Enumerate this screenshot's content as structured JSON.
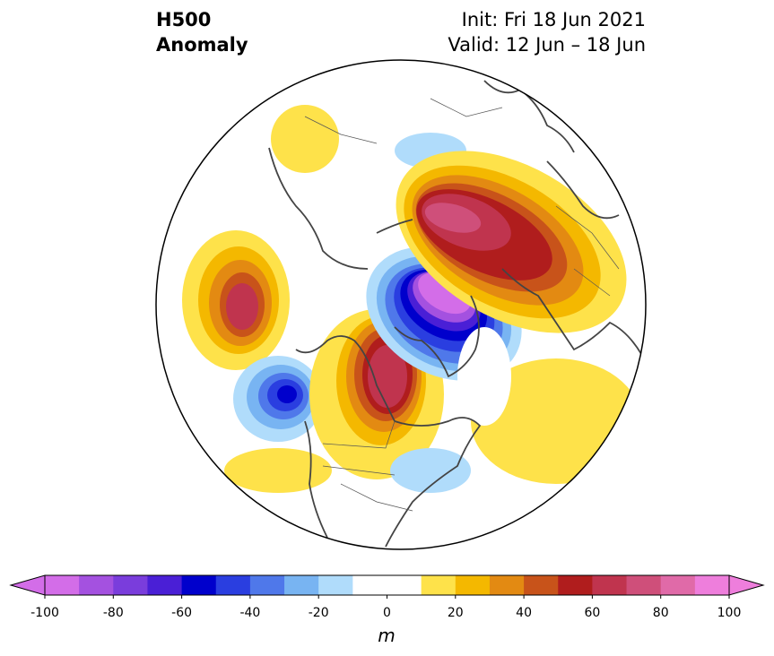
{
  "header": {
    "title_line1": "H500",
    "title_line2": "Anomaly",
    "init": "Init: Fri 18 Jun 2021",
    "valid": "Valid: 12 Jun – 18 Jun"
  },
  "colorbar": {
    "unit": "m",
    "ticks": [
      "-100",
      "-80",
      "-60",
      "-40",
      "-20",
      "0",
      "20",
      "40",
      "60",
      "80",
      "100"
    ],
    "colors": [
      "#d36de8",
      "#a451e0",
      "#7a3ddc",
      "#4a1fd6",
      "#0000cc",
      "#2a3ee0",
      "#4f78ea",
      "#78b4f2",
      "#b0dcfb",
      "#ffffff",
      "#ffffff",
      "#fee24a",
      "#f4b800",
      "#e38a12",
      "#c8531a",
      "#b01d1d",
      "#c0344e",
      "#cf4f7a",
      "#e06aa8",
      "#ee7edc"
    ],
    "min_arrow_color": "#d36de8",
    "max_arrow_color": "#ee7edc"
  }
}
